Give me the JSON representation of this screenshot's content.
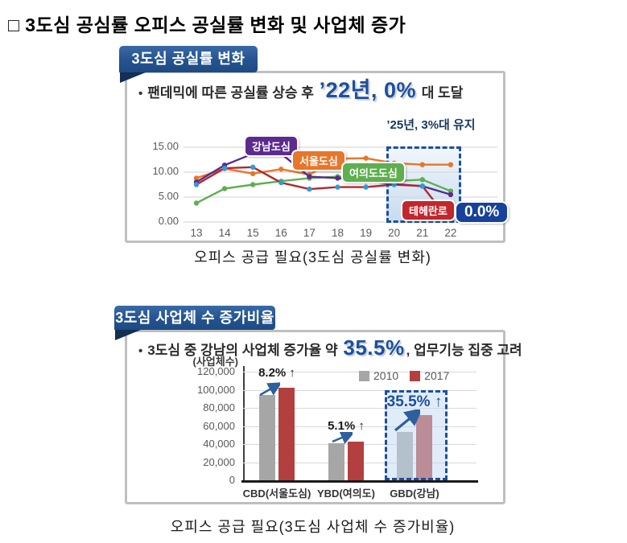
{
  "page": {
    "title": "□ 3도심 공심률 오피스 공실률 변화 및 사업체 증가"
  },
  "panel1": {
    "ribbon": "3도심 공실률 변화",
    "bullet_marker": "•",
    "bullet": {
      "prefix": "팬데믹에 따른 공실률 상승 후 ",
      "highlight": "’22년, 0%",
      "suffix": " 대 도달"
    },
    "caption": "오피스 공급 필요(3도심 공실률 변화)"
  },
  "panel2": {
    "ribbon": "3도심 사업체 수 증가비율",
    "bullet_marker": "•",
    "bullet": {
      "prefix": "3도심 중 강남의 사업체 증가율 약 ",
      "highlight": "35.5%",
      "suffix": ", 업무기능 집중 고려"
    },
    "caption": "오피스 공급 필요(3도심 사업체 수 증가비율)"
  },
  "chart_data": [
    {
      "type": "line",
      "title": "3도심 공실률 변화",
      "x": [
        "13",
        "14",
        "15",
        "16",
        "17",
        "18",
        "19",
        "20",
        "21",
        "22"
      ],
      "yticks": [
        "0.00",
        "5.00",
        "10.00",
        "15.00"
      ],
      "ylim": [
        0,
        16.5
      ],
      "grid": true,
      "series": [
        {
          "name": "서울도심",
          "color": "#e8762a",
          "values": [
            8.8,
            10.7,
            9.7,
            10.6,
            9.5,
            12.7,
            12.8,
            11.8,
            11.5,
            11.5
          ]
        },
        {
          "name": "여의도도심",
          "color": "#5fae50",
          "values": [
            3.8,
            6.7,
            7.5,
            8.2,
            8.8,
            9.1,
            9.0,
            8.2,
            8.5,
            6.2
          ]
        },
        {
          "name": "강남도심",
          "color": "#5b2b8e",
          "values": [
            8.0,
            11.4,
            13.7,
            13.7,
            9.1,
            8.8,
            8.2,
            7.6,
            7.2,
            5.5
          ]
        },
        {
          "name": "테헤란로",
          "color": "#b0292f",
          "marker_color": "#2f9cd8",
          "values": [
            7.5,
            10.8,
            11.0,
            7.9,
            6.6,
            7.0,
            7.0,
            7.5,
            7.2,
            0.0
          ]
        }
      ],
      "annotations": {
        "forecast": "’25년, 3%대 유지",
        "endpoint_value": "0.0%",
        "highlight_years": [
          "20",
          "21",
          "22"
        ]
      }
    },
    {
      "type": "bar",
      "unit_label": "(사업체수)",
      "categories": [
        "CBD(서울도심)",
        "YBD(여의도)",
        "GBD(강남)"
      ],
      "yticks": [
        "0",
        "20,000",
        "40,000",
        "60,000",
        "80,000",
        "100,000",
        "120,000"
      ],
      "ylim": [
        0,
        120000
      ],
      "grid": true,
      "legend_position": "top-right",
      "series": [
        {
          "name": "2010",
          "color": "#a6a6a6",
          "values": [
            94000,
            41000,
            53000
          ]
        },
        {
          "name": "2017",
          "color": "#b3403f",
          "values": [
            102000,
            43000,
            72000
          ]
        }
      ],
      "growth_labels": [
        {
          "text": "8.2%",
          "arrow": "↑",
          "color": "#1a1a1a",
          "emphasis": false
        },
        {
          "text": "5.1%",
          "arrow": "↑",
          "color": "#1a1a1a",
          "emphasis": false
        },
        {
          "text": "35.5%",
          "arrow": "↑",
          "color": "#1d4f9e",
          "emphasis": true
        }
      ],
      "highlight_category": "GBD(강남)"
    }
  ]
}
